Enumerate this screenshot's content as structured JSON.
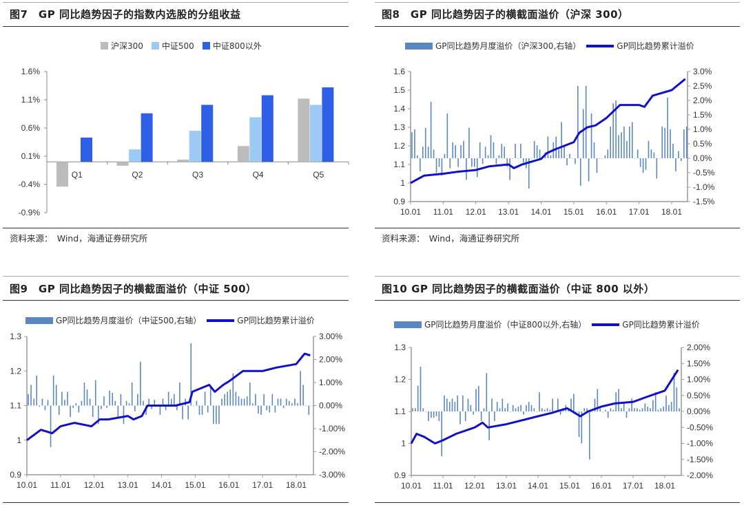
{
  "colors": {
    "hs300": "#bcbcbc",
    "zz500": "#9ccaf4",
    "zz800_ex": "#2f5fe6",
    "monthly_bar": "#5a87c0",
    "cum_line": "#1010cc"
  },
  "fig7": {
    "title": "图7　GP 同比趋势因子的指数内选股的分组收益",
    "legend": [
      "沪深300",
      "中证500",
      "中证800以外"
    ],
    "source": "资料来源：　Wind，海通证券研究所"
  },
  "fig8": {
    "title": "图8　GP 同比趋势因子的横截面溢价（沪深 300）",
    "legend_bar": "GP同比趋势月度溢价（沪深300,右轴）",
    "legend_line": "GP同比趋势累计溢价",
    "source": "资料来源：　Wind，海通证券研究所"
  },
  "fig9": {
    "title": "图9　GP 同比趋势因子的横截面溢价（中证 500）",
    "legend_bar": "GP同比趋势月度溢价（中证500,右轴）",
    "legend_line": "GP同比趋势累计溢价"
  },
  "fig10": {
    "title": "图10  GP 同比趋势因子的横截面溢价（中证 800 以外）",
    "legend_bar": "GP同比趋势月度溢价（中证800以外,右轴）",
    "legend_line": "GP同比趋势累计溢价"
  },
  "chart_data": [
    {
      "id": "fig7",
      "type": "bar",
      "categories": [
        "Q1",
        "Q2",
        "Q3",
        "Q4",
        "Q5"
      ],
      "series": [
        {
          "name": "沪深300",
          "values": [
            -0.44,
            -0.07,
            0.04,
            0.28,
            1.12
          ]
        },
        {
          "name": "中证500",
          "values": [
            0.0,
            0.22,
            0.55,
            0.79,
            1.01
          ]
        },
        {
          "name": "中证800以外",
          "values": [
            0.43,
            0.86,
            1.01,
            1.18,
            1.32
          ]
        }
      ],
      "yticks": [
        "1.6%",
        "1.1%",
        "0.6%",
        "0.1%",
        "-0.4%",
        "-0.9%"
      ],
      "ylim": [
        -0.9,
        1.6
      ],
      "yunit": "%",
      "legend": "top"
    },
    {
      "id": "fig8",
      "type": "bar+line",
      "xticks": [
        "10.01",
        "11.01",
        "12.01",
        "13.01",
        "14.01",
        "15.01",
        "16.01",
        "17.01",
        "18.01"
      ],
      "left_yticks": [
        "1.6",
        "1.5",
        "1.4",
        "1.3",
        "1.2",
        "1.1",
        "1",
        "0.9"
      ],
      "left_ylim": [
        0.9,
        1.6
      ],
      "right_yticks": [
        "3.0%",
        "2.5%",
        "2.0%",
        "1.5%",
        "1.0%",
        "0.5%",
        "0.0%",
        "-0.5%",
        "-1.0%",
        "-1.5%"
      ],
      "right_ylim": [
        -1.5,
        3.0
      ],
      "bars_monthly_pct": [
        0.9,
        1.0,
        0.1,
        -0.45,
        0.4,
        1.05,
        0.4,
        1.95,
        0.3,
        -0.5,
        -0.3,
        -0.6,
        0.15,
        1.55,
        -0.35,
        0.55,
        0.45,
        -0.3,
        0.45,
        0.6,
        -0.75,
        1.05,
        -0.3,
        -0.3,
        -0.65,
        0.55,
        -0.2,
        0.4,
        0.1,
        0.8,
        0.55,
        -0.2,
        0.1,
        0.5,
        0.4,
        -0.3,
        -0.75,
        0.0,
        0.5,
        0.0,
        0.5,
        -0.15,
        -0.35,
        -1.05,
        0.0,
        0.6,
        0.45,
        0.3,
        0.0,
        0.2,
        0.75,
        0.1,
        0.55,
        0.75,
        0.3,
        1.25,
        0.45,
        -0.25,
        0.15,
        0.0,
        -0.2,
        2.5,
        -0.95,
        1.7,
        2.5,
        -0.8,
        1.55,
        0.55,
        -0.5,
        0.0,
        0.0,
        0.1,
        0.3,
        1.1,
        1.9,
        2.0,
        0.8,
        0.9,
        1.1,
        0.6,
        1.1,
        1.25,
        0.0,
        0.3,
        -0.3,
        -0.5,
        -0.4,
        0.6,
        0.3,
        0.2,
        -0.7,
        0.0,
        1.1,
        1.05,
        2.1,
        1.0,
        0.5,
        -0.45,
        0.25,
        -0.1,
        1.0,
        1.1
      ],
      "line": {
        "dates": [
          "10.01",
          "10.06",
          "11.01",
          "11.06",
          "12.01",
          "12.06",
          "13.01",
          "13.03",
          "13.06",
          "14.01",
          "14.03",
          "14.06",
          "15.01",
          "15.03",
          "15.06",
          "15.09",
          "16.01",
          "16.06",
          "16.09",
          "17.01",
          "17.03",
          "17.06",
          "18.01",
          "18.06"
        ],
        "values": [
          1.0,
          1.04,
          1.05,
          1.06,
          1.07,
          1.09,
          1.1,
          1.08,
          1.1,
          1.13,
          1.16,
          1.18,
          1.22,
          1.27,
          1.3,
          1.31,
          1.35,
          1.42,
          1.42,
          1.42,
          1.41,
          1.47,
          1.5,
          1.56
        ]
      },
      "legend": "top"
    },
    {
      "id": "fig9",
      "type": "bar+line",
      "xticks": [
        "10.01",
        "11.01",
        "12.01",
        "13.01",
        "14.01",
        "15.01",
        "16.01",
        "17.01",
        "18.01"
      ],
      "left_yticks": [
        "1.3",
        "1.2",
        "1.1",
        "1",
        "0.9"
      ],
      "left_ylim": [
        0.9,
        1.3
      ],
      "right_yticks": [
        "3.00%",
        "2.00%",
        "1.00%",
        "0.00%",
        "-1.00%",
        "-2.00%",
        "-3.00%"
      ],
      "right_ylim": [
        -3.0,
        3.0
      ],
      "bars_monthly_pct": [
        0.5,
        0.9,
        0.3,
        1.3,
        -0.05,
        0.3,
        -0.2,
        0.25,
        -1.8,
        1.3,
        0.9,
        -0.4,
        0.6,
        0.25,
        0.6,
        -0.5,
        -0.1,
        0.1,
        -0.3,
        0.2,
        1.0,
        0.7,
        0.3,
        -0.5,
        1.1,
        -0.8,
        -0.15,
        0.4,
        -0.1,
        0.65,
        0.55,
        0.2,
        -0.5,
        0.5,
        -0.8,
        0.2,
        0.1,
        1.0,
        -0.25,
        0.5,
        1.9,
        0.2,
        -0.4,
        0.3,
        -0.15,
        0.25,
        -0.05,
        -0.4,
        0.3,
        -0.2,
        0.6,
        0.3,
        0.5,
        -0.2,
        1.0,
        -0.6,
        0.3,
        -0.6,
        2.7,
        0.0,
        0.2,
        -0.4,
        -0.4,
        0.6,
        -0.3,
        0.8,
        -0.8,
        -0.8,
        -0.8,
        0.3,
        0.5,
        0.6,
        0.7,
        1.4,
        0.6,
        0.4,
        0.3,
        0.3,
        0.4,
        1.0,
        0.1,
        0.5,
        -0.35,
        -0.4,
        0.5,
        -0.2,
        -0.3,
        0.5,
        -0.3,
        0.3,
        0.3,
        -0.1,
        0.3,
        0.2,
        0.1,
        0.3,
        0.1,
        1.5,
        0.9,
        0.0,
        -0.4,
        0.0
      ],
      "line": {
        "dates": [
          "10.01",
          "10.06",
          "10.10",
          "11.01",
          "11.06",
          "11.12",
          "12.03",
          "12.06",
          "13.01",
          "13.03",
          "13.06",
          "13.08",
          "14.01",
          "14.06",
          "14.11",
          "14.12",
          "15.06",
          "15.08",
          "15.11",
          "16.01",
          "16.06",
          "17.01",
          "17.06",
          "18.01",
          "18.04",
          "18.06"
        ],
        "values": [
          1.0,
          1.03,
          1.02,
          1.04,
          1.05,
          1.04,
          1.06,
          1.06,
          1.07,
          1.06,
          1.07,
          1.1,
          1.1,
          1.1,
          1.11,
          1.14,
          1.16,
          1.14,
          1.16,
          1.17,
          1.2,
          1.2,
          1.21,
          1.22,
          1.25,
          1.245
        ]
      },
      "legend": "top"
    },
    {
      "id": "fig10",
      "type": "bar+line",
      "xticks": [
        "10.01",
        "11.01",
        "12.01",
        "13.01",
        "14.01",
        "15.01",
        "16.01",
        "17.01",
        "18.01"
      ],
      "left_yticks": [
        "1.3",
        "1.2",
        "1.1",
        "1",
        "0.9"
      ],
      "left_ylim": [
        0.9,
        1.3
      ],
      "right_yticks": [
        "2.00%",
        "1.50%",
        "1.00%",
        "0.50%",
        "0.00%",
        "-0.50%",
        "-1.00%",
        "-1.50%",
        "-2.00%"
      ],
      "right_ylim": [
        -2.0,
        2.0
      ],
      "bars_monthly_pct": [
        0.1,
        0.1,
        0.8,
        1.4,
        0.1,
        0.0,
        -0.3,
        -0.2,
        -0.2,
        -0.15,
        -0.3,
        -1.4,
        0.5,
        0.4,
        0.3,
        0.4,
        0.3,
        0.5,
        -0.4,
        0.5,
        -0.3,
        0.4,
        0.2,
        -0.1,
        0.7,
        0.8,
        -0.3,
        0.1,
        1.2,
        -0.9,
        0.4,
        -0.3,
        0.3,
        0.1,
        0.4,
        0.1,
        0.25,
        0.0,
        0.2,
        0.1,
        0.15,
        0.2,
        -0.1,
        0.2,
        0.3,
        0.2,
        0.1,
        0.0,
        0.6,
        0.1,
        0.05,
        0.1,
        0.05,
        0.4,
        0.0,
        0.4,
        -0.1,
        0.1,
        0.2,
        0.05,
        0.4,
        0.55,
        0.0,
        -0.8,
        -1.0,
        0.1,
        0.1,
        -1.5,
        0.0,
        0.4,
        0.7,
        0.1,
        0.0,
        0.05,
        -0.2,
        0.1,
        0.05,
        0.6,
        0.7,
        0.1,
        0.3,
        -0.2,
        0.1,
        0.4,
        0.1,
        0.1,
        0.05,
        0.1,
        0.25,
        0.15,
        0.1,
        0.35,
        0.6,
        0.05,
        0.1,
        0.15,
        0.5,
        0.2,
        0.3,
        1.2,
        0.75,
        0.1
      ],
      "line": {
        "dates": [
          "10.01",
          "10.03",
          "10.06",
          "10.10",
          "11.01",
          "11.06",
          "12.01",
          "12.04",
          "12.06",
          "13.01",
          "14.01",
          "14.06",
          "14.12",
          "15.03",
          "15.05",
          "15.08",
          "16.01",
          "16.06",
          "17.01",
          "17.06",
          "18.01",
          "18.06"
        ],
        "values": [
          1.0,
          1.03,
          1.02,
          1.0,
          1.01,
          1.03,
          1.05,
          1.065,
          1.05,
          1.06,
          1.085,
          1.095,
          1.11,
          1.095,
          1.085,
          1.1,
          1.115,
          1.125,
          1.13,
          1.145,
          1.165,
          1.23
        ]
      },
      "legend": "top"
    }
  ]
}
